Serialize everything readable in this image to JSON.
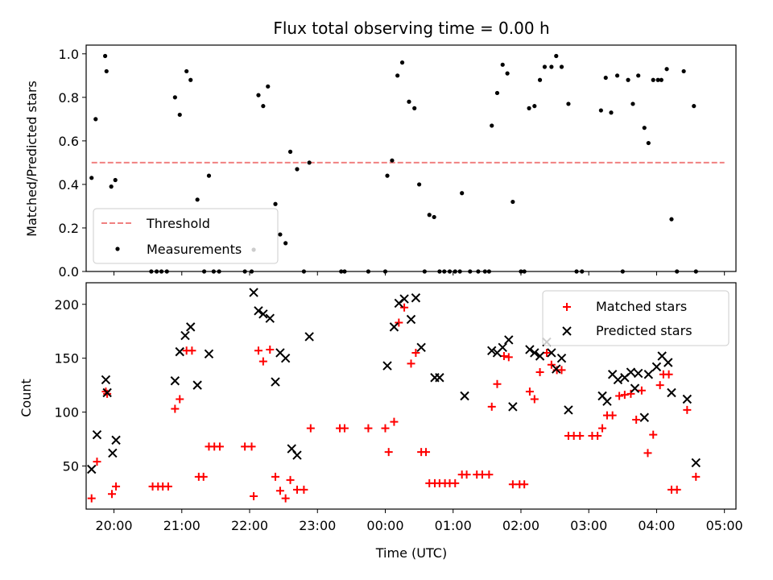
{
  "figure": {
    "title": "Flux total observing time = 0.00 h"
  },
  "chart_data": [
    {
      "type": "scatter",
      "title": "Flux total observing time = 0.00 h",
      "xlabel": "",
      "ylabel": "Matched/Predicted stars",
      "x_unit": "hours since 19:00 UTC",
      "xlim": [
        0.59,
        10.17
      ],
      "ylim": [
        0.0,
        1.04
      ],
      "yticks": [
        0.0,
        0.2,
        0.4,
        0.6,
        0.8,
        1.0
      ],
      "ytick_labels": [
        "0.0",
        "0.2",
        "0.4",
        "0.6",
        "0.8",
        "1.0"
      ],
      "threshold": {
        "name": "Threshold",
        "y": 0.5,
        "x_start": 0.67,
        "x_end": 10.0,
        "color": "#f08080"
      },
      "legend": {
        "position": "lower-left",
        "entries": [
          "Threshold",
          "Measurements"
        ]
      },
      "series": [
        {
          "name": "Measurements",
          "color": "#000000",
          "points": [
            [
              0.67,
              0.43
            ],
            [
              0.73,
              0.7
            ],
            [
              0.87,
              0.99
            ],
            [
              0.89,
              0.92
            ],
            [
              0.96,
              0.39
            ],
            [
              1.02,
              0.42
            ],
            [
              1.55,
              0.0
            ],
            [
              1.63,
              0.0
            ],
            [
              1.7,
              0.0
            ],
            [
              1.78,
              0.0
            ],
            [
              1.9,
              0.8
            ],
            [
              1.97,
              0.72
            ],
            [
              2.07,
              0.92
            ],
            [
              2.13,
              0.88
            ],
            [
              2.23,
              0.33
            ],
            [
              2.33,
              0.0
            ],
            [
              2.4,
              0.44
            ],
            [
              2.47,
              0.0
            ],
            [
              2.55,
              0.0
            ],
            [
              2.93,
              0.0
            ],
            [
              3.03,
              0.0
            ],
            [
              3.06,
              0.1
            ],
            [
              3.13,
              0.81
            ],
            [
              3.2,
              0.76
            ],
            [
              3.27,
              0.85
            ],
            [
              3.38,
              0.31
            ],
            [
              3.45,
              0.17
            ],
            [
              3.53,
              0.13
            ],
            [
              3.6,
              0.55
            ],
            [
              3.7,
              0.47
            ],
            [
              3.8,
              0.0
            ],
            [
              3.88,
              0.5
            ],
            [
              4.35,
              0.0
            ],
            [
              4.4,
              0.0
            ],
            [
              4.75,
              0.0
            ],
            [
              5.0,
              0.0
            ],
            [
              5.03,
              0.44
            ],
            [
              5.1,
              0.51
            ],
            [
              5.18,
              0.9
            ],
            [
              5.25,
              0.96
            ],
            [
              5.35,
              0.78
            ],
            [
              5.43,
              0.75
            ],
            [
              5.5,
              0.4
            ],
            [
              5.58,
              0.0
            ],
            [
              5.65,
              0.26
            ],
            [
              5.72,
              0.25
            ],
            [
              5.8,
              0.0
            ],
            [
              5.87,
              0.0
            ],
            [
              5.95,
              0.0
            ],
            [
              6.03,
              0.0
            ],
            [
              6.13,
              0.36
            ],
            [
              6.1,
              0.0
            ],
            [
              6.25,
              0.0
            ],
            [
              6.37,
              0.0
            ],
            [
              6.47,
              0.0
            ],
            [
              6.53,
              0.0
            ],
            [
              6.57,
              0.67
            ],
            [
              6.65,
              0.82
            ],
            [
              6.73,
              0.95
            ],
            [
              6.8,
              0.91
            ],
            [
              6.88,
              0.32
            ],
            [
              7.0,
              0.0
            ],
            [
              7.05,
              0.0
            ],
            [
              7.12,
              0.75
            ],
            [
              7.2,
              0.76
            ],
            [
              7.28,
              0.88
            ],
            [
              7.35,
              0.94
            ],
            [
              7.45,
              0.94
            ],
            [
              7.52,
              0.99
            ],
            [
              7.6,
              0.94
            ],
            [
              7.7,
              0.77
            ],
            [
              7.82,
              0.0
            ],
            [
              7.9,
              0.0
            ],
            [
              8.18,
              0.74
            ],
            [
              8.25,
              0.89
            ],
            [
              8.33,
              0.73
            ],
            [
              8.42,
              0.9
            ],
            [
              8.5,
              0.0
            ],
            [
              8.58,
              0.88
            ],
            [
              8.65,
              0.77
            ],
            [
              8.73,
              0.9
            ],
            [
              8.82,
              0.66
            ],
            [
              8.88,
              0.59
            ],
            [
              8.95,
              0.88
            ],
            [
              9.02,
              0.88
            ],
            [
              9.07,
              0.88
            ],
            [
              9.15,
              0.93
            ],
            [
              9.22,
              0.24
            ],
            [
              9.3,
              0.0
            ],
            [
              9.4,
              0.92
            ],
            [
              9.55,
              0.76
            ],
            [
              9.58,
              0.0
            ]
          ]
        }
      ]
    },
    {
      "type": "scatter",
      "xlabel": "Time (UTC)",
      "ylabel": "Count",
      "x_unit": "hours since 19:00 UTC",
      "xlim": [
        0.59,
        10.17
      ],
      "ylim": [
        10,
        220
      ],
      "yticks": [
        50,
        100,
        150,
        200
      ],
      "ytick_labels": [
        "50",
        "100",
        "150",
        "200"
      ],
      "xticks": [
        1,
        2,
        3,
        4,
        5,
        6,
        7,
        8,
        9,
        10
      ],
      "xtick_labels": [
        "20:00",
        "21:00",
        "22:00",
        "23:00",
        "00:00",
        "01:00",
        "02:00",
        "03:00",
        "04:00",
        "05:00"
      ],
      "legend": {
        "position": "top-right",
        "entries": [
          "Matched stars",
          "Predicted stars"
        ]
      },
      "series": [
        {
          "name": "Matched stars",
          "marker": "plus",
          "color": "#ff0000",
          "points": [
            [
              0.67,
              20
            ],
            [
              0.75,
              54
            ],
            [
              0.88,
              119
            ],
            [
              0.9,
              117
            ],
            [
              0.97,
              24
            ],
            [
              1.03,
              31
            ],
            [
              1.57,
              31
            ],
            [
              1.65,
              31
            ],
            [
              1.72,
              31
            ],
            [
              1.8,
              31
            ],
            [
              1.9,
              103
            ],
            [
              1.97,
              112
            ],
            [
              2.07,
              157
            ],
            [
              2.15,
              157
            ],
            [
              2.25,
              40
            ],
            [
              2.32,
              40
            ],
            [
              2.4,
              68
            ],
            [
              2.48,
              68
            ],
            [
              2.56,
              68
            ],
            [
              2.93,
              68
            ],
            [
              3.03,
              68
            ],
            [
              3.06,
              22
            ],
            [
              3.13,
              157
            ],
            [
              3.2,
              147
            ],
            [
              3.3,
              158
            ],
            [
              3.38,
              40
            ],
            [
              3.45,
              27
            ],
            [
              3.53,
              20
            ],
            [
              3.6,
              37
            ],
            [
              3.7,
              28
            ],
            [
              3.8,
              28
            ],
            [
              3.9,
              85
            ],
            [
              4.33,
              85
            ],
            [
              4.4,
              85
            ],
            [
              4.75,
              85
            ],
            [
              5.0,
              85
            ],
            [
              5.05,
              63
            ],
            [
              5.13,
              91
            ],
            [
              5.2,
              183
            ],
            [
              5.28,
              197
            ],
            [
              5.38,
              145
            ],
            [
              5.45,
              155
            ],
            [
              5.53,
              63
            ],
            [
              5.6,
              63
            ],
            [
              5.65,
              34
            ],
            [
              5.73,
              34
            ],
            [
              5.8,
              34
            ],
            [
              5.88,
              34
            ],
            [
              5.95,
              34
            ],
            [
              6.03,
              34
            ],
            [
              6.13,
              42
            ],
            [
              6.2,
              42
            ],
            [
              6.35,
              42
            ],
            [
              6.43,
              42
            ],
            [
              6.53,
              42
            ],
            [
              6.57,
              105
            ],
            [
              6.65,
              126
            ],
            [
              6.75,
              152
            ],
            [
              6.82,
              151
            ],
            [
              6.88,
              33
            ],
            [
              6.98,
              33
            ],
            [
              7.05,
              33
            ],
            [
              7.13,
              119
            ],
            [
              7.2,
              112
            ],
            [
              7.28,
              137
            ],
            [
              7.38,
              155
            ],
            [
              7.45,
              144
            ],
            [
              7.53,
              139
            ],
            [
              7.6,
              139
            ],
            [
              7.7,
              78
            ],
            [
              7.78,
              78
            ],
            [
              7.87,
              78
            ],
            [
              8.05,
              78
            ],
            [
              8.13,
              78
            ],
            [
              8.2,
              85
            ],
            [
              8.27,
              97
            ],
            [
              8.35,
              97
            ],
            [
              8.45,
              115
            ],
            [
              8.53,
              116
            ],
            [
              8.62,
              117
            ],
            [
              8.7,
              93
            ],
            [
              8.78,
              120
            ],
            [
              8.87,
              62
            ],
            [
              8.95,
              79
            ],
            [
              9.05,
              125
            ],
            [
              9.1,
              135
            ],
            [
              9.18,
              135
            ],
            [
              9.22,
              28
            ],
            [
              9.3,
              28
            ],
            [
              9.45,
              102
            ],
            [
              9.58,
              40
            ]
          ]
        },
        {
          "name": "Predicted stars",
          "marker": "x",
          "color": "#000000",
          "points": [
            [
              0.67,
              47
            ],
            [
              0.75,
              79
            ],
            [
              0.88,
              130
            ],
            [
              0.9,
              118
            ],
            [
              0.98,
              62
            ],
            [
              1.03,
              74
            ],
            [
              1.9,
              129
            ],
            [
              1.97,
              156
            ],
            [
              2.05,
              171
            ],
            [
              2.13,
              179
            ],
            [
              2.23,
              125
            ],
            [
              2.4,
              154
            ],
            [
              3.06,
              211
            ],
            [
              3.13,
              194
            ],
            [
              3.2,
              191
            ],
            [
              3.3,
              187
            ],
            [
              3.38,
              128
            ],
            [
              3.45,
              155
            ],
            [
              3.53,
              150
            ],
            [
              3.62,
              66
            ],
            [
              3.7,
              60
            ],
            [
              3.88,
              170
            ],
            [
              5.03,
              143
            ],
            [
              5.13,
              179
            ],
            [
              5.2,
              201
            ],
            [
              5.28,
              205
            ],
            [
              5.38,
              186
            ],
            [
              5.45,
              206
            ],
            [
              5.53,
              160
            ],
            [
              5.73,
              132
            ],
            [
              5.8,
              132
            ],
            [
              6.17,
              115
            ],
            [
              6.57,
              157
            ],
            [
              6.65,
              155
            ],
            [
              6.73,
              160
            ],
            [
              6.82,
              167
            ],
            [
              6.88,
              105
            ],
            [
              7.13,
              158
            ],
            [
              7.2,
              155
            ],
            [
              7.28,
              152
            ],
            [
              7.38,
              165
            ],
            [
              7.45,
              155
            ],
            [
              7.52,
              140
            ],
            [
              7.6,
              150
            ],
            [
              7.7,
              102
            ],
            [
              8.2,
              115
            ],
            [
              8.27,
              110
            ],
            [
              8.35,
              135
            ],
            [
              8.43,
              130
            ],
            [
              8.53,
              132
            ],
            [
              8.62,
              137
            ],
            [
              8.68,
              122
            ],
            [
              8.73,
              136
            ],
            [
              8.82,
              95
            ],
            [
              8.88,
              135
            ],
            [
              9.0,
              142
            ],
            [
              9.08,
              152
            ],
            [
              9.17,
              146
            ],
            [
              9.22,
              118
            ],
            [
              9.45,
              112
            ],
            [
              9.58,
              53
            ]
          ]
        }
      ]
    }
  ]
}
